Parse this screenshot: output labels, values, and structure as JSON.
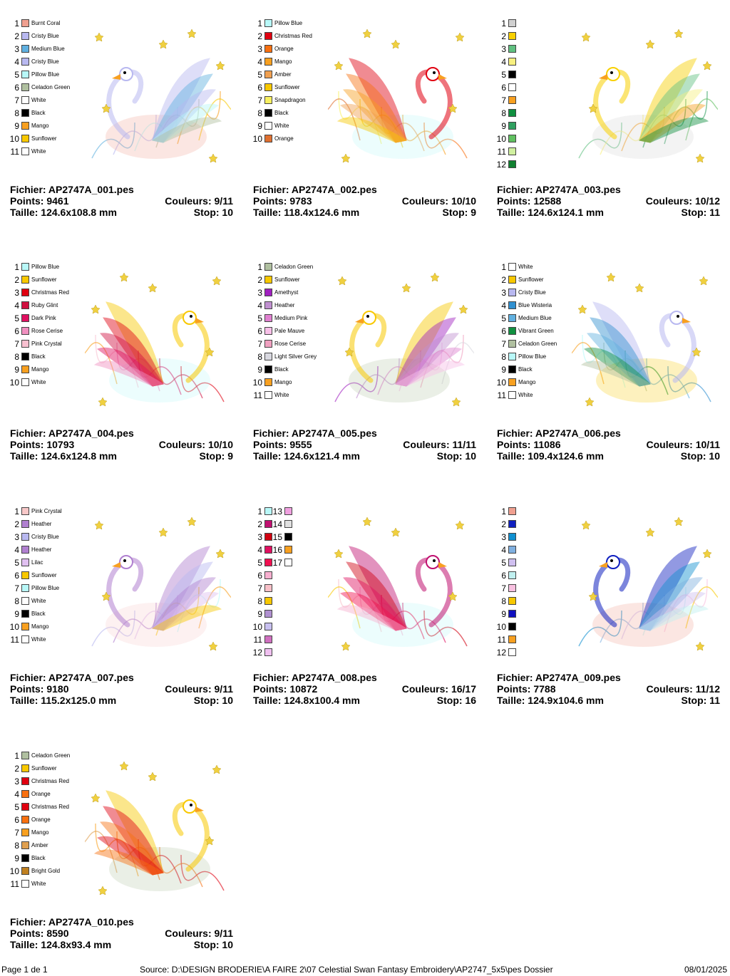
{
  "cards": [
    {
      "colors": [
        {
          "num": 1,
          "color": "#f0a090",
          "name": "Burnt Coral"
        },
        {
          "num": 2,
          "color": "#b8b8f0",
          "name": "Cristy Blue"
        },
        {
          "num": 3,
          "color": "#60b0e0",
          "name": "Medium Blue"
        },
        {
          "num": 4,
          "color": "#b8b8f0",
          "name": "Cristy Blue"
        },
        {
          "num": 5,
          "color": "#b8f8f8",
          "name": "Pillow Blue"
        },
        {
          "num": 6,
          "color": "#b0c0a0",
          "name": "Celadon Green"
        },
        {
          "num": 7,
          "color": "#ffffff",
          "name": "White"
        },
        {
          "num": 8,
          "color": "#000000",
          "name": "Black"
        },
        {
          "num": 9,
          "color": "#f8a020",
          "name": "Mango"
        },
        {
          "num": 10,
          "color": "#f8c800",
          "name": "Sunflower"
        },
        {
          "num": 11,
          "color": "#ffffff",
          "name": "White"
        }
      ],
      "file": "Fichier: AP2747A_001.pes",
      "points": "Points: 9461",
      "couleurs": "Couleurs: 9/11",
      "taille": "Taille: 124.6x108.8 mm",
      "stop": "Stop: 10"
    },
    {
      "colors": [
        {
          "num": 1,
          "color": "#b8f8f8",
          "name": "Pillow Blue"
        },
        {
          "num": 2,
          "color": "#e00010",
          "name": "Christmas Red"
        },
        {
          "num": 3,
          "color": "#f87010",
          "name": "Orange"
        },
        {
          "num": 4,
          "color": "#f8a020",
          "name": "Mango"
        },
        {
          "num": 5,
          "color": "#f0a050",
          "name": "Amber"
        },
        {
          "num": 6,
          "color": "#f8c800",
          "name": "Sunflower"
        },
        {
          "num": 7,
          "color": "#f8f060",
          "name": "Snapdragon"
        },
        {
          "num": 8,
          "color": "#000000",
          "name": "Black"
        },
        {
          "num": 9,
          "color": "#ffffff",
          "name": "White"
        },
        {
          "num": 10,
          "color": "#e07030",
          "name": "Orange"
        }
      ],
      "file": "Fichier: AP2747A_002.pes",
      "points": "Points: 9783",
      "couleurs": "Couleurs: 10/10",
      "taille": "Taille: 118.4x124.6 mm",
      "stop": "Stop: 9"
    },
    {
      "colors": [
        {
          "num": 1,
          "color": "#d0d0d0"
        },
        {
          "num": 2,
          "color": "#f8d000"
        },
        {
          "num": 3,
          "color": "#60c080"
        },
        {
          "num": 4,
          "color": "#f8f080"
        },
        {
          "num": 5,
          "color": "#000000"
        },
        {
          "num": 6,
          "color": "#ffffff"
        },
        {
          "num": 7,
          "color": "#f8a020"
        },
        {
          "num": 8,
          "color": "#109040"
        },
        {
          "num": 9,
          "color": "#30a060"
        },
        {
          "num": 10,
          "color": "#60c060"
        },
        {
          "num": 11,
          "color": "#d0f0a0"
        },
        {
          "num": 12,
          "color": "#108030"
        }
      ],
      "file": "Fichier: AP2747A_003.pes",
      "points": "Points: 12588",
      "couleurs": "Couleurs: 10/12",
      "taille": "Taille: 124.6x124.1 mm",
      "stop": "Stop: 11"
    },
    {
      "colors": [
        {
          "num": 1,
          "color": "#b8f8f8",
          "name": "Pillow Blue"
        },
        {
          "num": 2,
          "color": "#f8c800",
          "name": "Sunflower"
        },
        {
          "num": 3,
          "color": "#e00010",
          "name": "Christmas Red"
        },
        {
          "num": 4,
          "color": "#d01040",
          "name": "Ruby Glint"
        },
        {
          "num": 5,
          "color": "#e01060",
          "name": "Dark Pink"
        },
        {
          "num": 6,
          "color": "#f090c0",
          "name": "Rose Cerise"
        },
        {
          "num": 7,
          "color": "#f8c0d0",
          "name": "Pink Crystal"
        },
        {
          "num": 8,
          "color": "#000000",
          "name": "Black"
        },
        {
          "num": 9,
          "color": "#f8a020",
          "name": "Mango"
        },
        {
          "num": 10,
          "color": "#ffffff",
          "name": "White"
        }
      ],
      "file": "Fichier: AP2747A_004.pes",
      "points": "Points: 10793",
      "couleurs": "Couleurs: 10/10",
      "taille": "Taille: 124.6x124.8 mm",
      "stop": "Stop: 9"
    },
    {
      "colors": [
        {
          "num": 1,
          "color": "#b0c0a0",
          "name": "Celadon Green"
        },
        {
          "num": 2,
          "color": "#f8c800",
          "name": "Sunflower"
        },
        {
          "num": 3,
          "color": "#a020c0",
          "name": "Amethyst"
        },
        {
          "num": 4,
          "color": "#c090d0",
          "name": "Heather"
        },
        {
          "num": 5,
          "color": "#e080d0",
          "name": "Medium Pink"
        },
        {
          "num": 6,
          "color": "#f8c0e8",
          "name": "Pale Mauve"
        },
        {
          "num": 7,
          "color": "#f0a0c0",
          "name": "Rose Cerise"
        },
        {
          "num": 8,
          "color": "#d8d8e0",
          "name": "Light Silver Grey"
        },
        {
          "num": 9,
          "color": "#000000",
          "name": "Black"
        },
        {
          "num": 10,
          "color": "#f8a020",
          "name": "Mango"
        },
        {
          "num": 11,
          "color": "#ffffff",
          "name": "White"
        }
      ],
      "file": "Fichier: AP2747A_005.pes",
      "points": "Points: 9555",
      "couleurs": "Couleurs: 11/11",
      "taille": "Taille: 124.6x121.4 mm",
      "stop": "Stop: 10"
    },
    {
      "colors": [
        {
          "num": 1,
          "color": "#ffffff",
          "name": "White"
        },
        {
          "num": 2,
          "color": "#f8c800",
          "name": "Sunflower"
        },
        {
          "num": 3,
          "color": "#b8b8f0",
          "name": "Cristy Blue"
        },
        {
          "num": 4,
          "color": "#3090d0",
          "name": "Blue Wisteria"
        },
        {
          "num": 5,
          "color": "#60b0e0",
          "name": "Medium Blue"
        },
        {
          "num": 6,
          "color": "#109040",
          "name": "Vibrant Green"
        },
        {
          "num": 7,
          "color": "#b0c0a0",
          "name": "Celadon Green"
        },
        {
          "num": 8,
          "color": "#b8f8f8",
          "name": "Pillow Blue"
        },
        {
          "num": 9,
          "color": "#000000",
          "name": "Black"
        },
        {
          "num": 10,
          "color": "#f8a020",
          "name": "Mango"
        },
        {
          "num": 11,
          "color": "#ffffff",
          "name": "White"
        }
      ],
      "file": "Fichier: AP2747A_006.pes",
      "points": "Points: 11086",
      "couleurs": "Couleurs: 10/11",
      "taille": "Taille: 109.4x124.6 mm",
      "stop": "Stop: 10"
    },
    {
      "colors": [
        {
          "num": 1,
          "color": "#f8c8c8",
          "name": "Pink Crystal"
        },
        {
          "num": 2,
          "color": "#b080d0",
          "name": "Heather"
        },
        {
          "num": 3,
          "color": "#b8b8f0",
          "name": "Cristy Blue"
        },
        {
          "num": 4,
          "color": "#b080d0",
          "name": "Heather"
        },
        {
          "num": 5,
          "color": "#e0c0f0",
          "name": "Lilac"
        },
        {
          "num": 6,
          "color": "#f8c800",
          "name": "Sunflower"
        },
        {
          "num": 7,
          "color": "#b8f8f8",
          "name": "Pillow Blue"
        },
        {
          "num": 8,
          "color": "#ffffff",
          "name": "White"
        },
        {
          "num": 9,
          "color": "#000000",
          "name": "Black"
        },
        {
          "num": 10,
          "color": "#f8a020",
          "name": "Mango"
        },
        {
          "num": 11,
          "color": "#ffffff",
          "name": "White"
        }
      ],
      "file": "Fichier: AP2747A_007.pes",
      "points": "Points: 9180",
      "couleurs": "Couleurs: 9/11",
      "taille": "Taille: 115.2x125.0 mm",
      "stop": "Stop: 10"
    },
    {
      "colors": [
        {
          "num": 1,
          "color": "#b8f8f8"
        },
        {
          "num": 2,
          "color": "#c01070"
        },
        {
          "num": 3,
          "color": "#d00010"
        },
        {
          "num": 4,
          "color": "#e01060"
        },
        {
          "num": 5,
          "color": "#f01050"
        },
        {
          "num": 6,
          "color": "#f8b0d0"
        },
        {
          "num": 7,
          "color": "#f8c0c8"
        },
        {
          "num": 8,
          "color": "#f8c800"
        },
        {
          "num": 9,
          "color": "#b090d0"
        },
        {
          "num": 10,
          "color": "#c8c0f0"
        },
        {
          "num": 11,
          "color": "#d070c0"
        },
        {
          "num": 12,
          "color": "#f0c0f0"
        },
        {
          "num": 13,
          "color": "#f0a0e0"
        },
        {
          "num": 14,
          "color": "#e0e0e0"
        },
        {
          "num": 15,
          "color": "#000000"
        },
        {
          "num": 16,
          "color": "#f8a020"
        },
        {
          "num": 17,
          "color": "#ffffff"
        }
      ],
      "file": "Fichier: AP2747A_008.pes",
      "points": "Points: 10872",
      "couleurs": "Couleurs: 16/17",
      "taille": "Taille: 124.8x100.4 mm",
      "stop": "Stop: 16"
    },
    {
      "colors": [
        {
          "num": 1,
          "color": "#f0a090"
        },
        {
          "num": 2,
          "color": "#1020c0"
        },
        {
          "num": 3,
          "color": "#1090d0"
        },
        {
          "num": 4,
          "color": "#80b0e0"
        },
        {
          "num": 5,
          "color": "#d0c0f0"
        },
        {
          "num": 6,
          "color": "#c0f0f0"
        },
        {
          "num": 7,
          "color": "#f8c0e0"
        },
        {
          "num": 8,
          "color": "#f8c800"
        },
        {
          "num": 9,
          "color": "#1010c0"
        },
        {
          "num": 10,
          "color": "#000000"
        },
        {
          "num": 11,
          "color": "#f8a020"
        },
        {
          "num": 12,
          "color": "#ffffff"
        }
      ],
      "file": "Fichier: AP2747A_009.pes",
      "points": "Points: 7788",
      "couleurs": "Couleurs: 11/12",
      "taille": "Taille: 124.9x104.6 mm",
      "stop": "Stop: 11"
    },
    {
      "colors": [
        {
          "num": 1,
          "color": "#b0c0a0",
          "name": "Celadon Green"
        },
        {
          "num": 2,
          "color": "#f8c800",
          "name": "Sunflower"
        },
        {
          "num": 3,
          "color": "#e00010",
          "name": "Christmas Red"
        },
        {
          "num": 4,
          "color": "#f87010",
          "name": "Orange"
        },
        {
          "num": 5,
          "color": "#e00010",
          "name": "Christmas Red"
        },
        {
          "num": 6,
          "color": "#f87010",
          "name": "Orange"
        },
        {
          "num": 7,
          "color": "#f8a020",
          "name": "Mango"
        },
        {
          "num": 8,
          "color": "#e0a050",
          "name": "Amber"
        },
        {
          "num": 9,
          "color": "#000000",
          "name": "Black"
        },
        {
          "num": 10,
          "color": "#c08020",
          "name": "Bright Gold"
        },
        {
          "num": 11,
          "color": "#ffffff",
          "name": "White"
        }
      ],
      "file": "Fichier: AP2747A_010.pes",
      "points": "Points: 8590",
      "couleurs": "Couleurs: 9/11",
      "taille": "Taille: 124.8x93.4 mm",
      "stop": "Stop: 10"
    }
  ],
  "footer": {
    "page": "Page 1 de 1",
    "source": "Source: D:\\DESIGN BRODERIE\\A FAIRE 2\\07 Celestial Swan Fantasy Embroidery\\AP2747_5x5\\pes Dossier",
    "date": "08/01/2025"
  }
}
